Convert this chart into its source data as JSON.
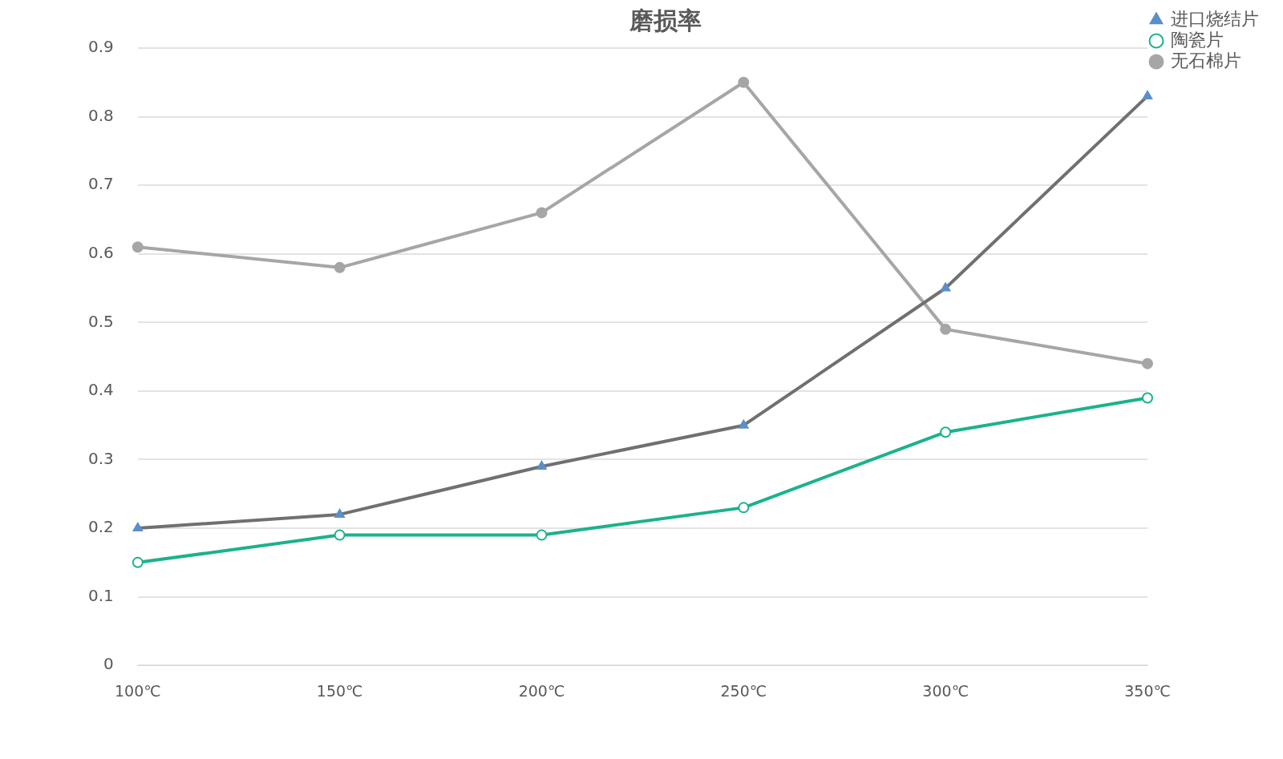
{
  "chart_data": {
    "type": "line",
    "title": "磨损率",
    "categories": [
      "100℃",
      "150℃",
      "200℃",
      "250℃",
      "300℃",
      "350℃"
    ],
    "series": [
      {
        "name": "进口烧结片",
        "color": "#707070",
        "marker": "triangle",
        "values": [
          0.2,
          0.22,
          0.29,
          0.35,
          0.55,
          0.83
        ]
      },
      {
        "name": "陶瓷片",
        "color": "#1bb28c",
        "marker": "circle",
        "values": [
          0.15,
          0.19,
          0.19,
          0.23,
          0.34,
          0.39
        ]
      },
      {
        "name": "无石棉片",
        "color": "#a6a6a6",
        "marker": "circle",
        "values": [
          0.61,
          0.58,
          0.66,
          0.85,
          0.49,
          0.44
        ]
      }
    ],
    "ylim": [
      0,
      0.9
    ],
    "yticks": [
      0,
      0.1,
      0.2,
      0.3,
      0.4,
      0.5,
      0.6,
      0.7,
      0.8,
      0.9
    ],
    "grid": "y",
    "legend": "top right",
    "line_style": "solid"
  }
}
